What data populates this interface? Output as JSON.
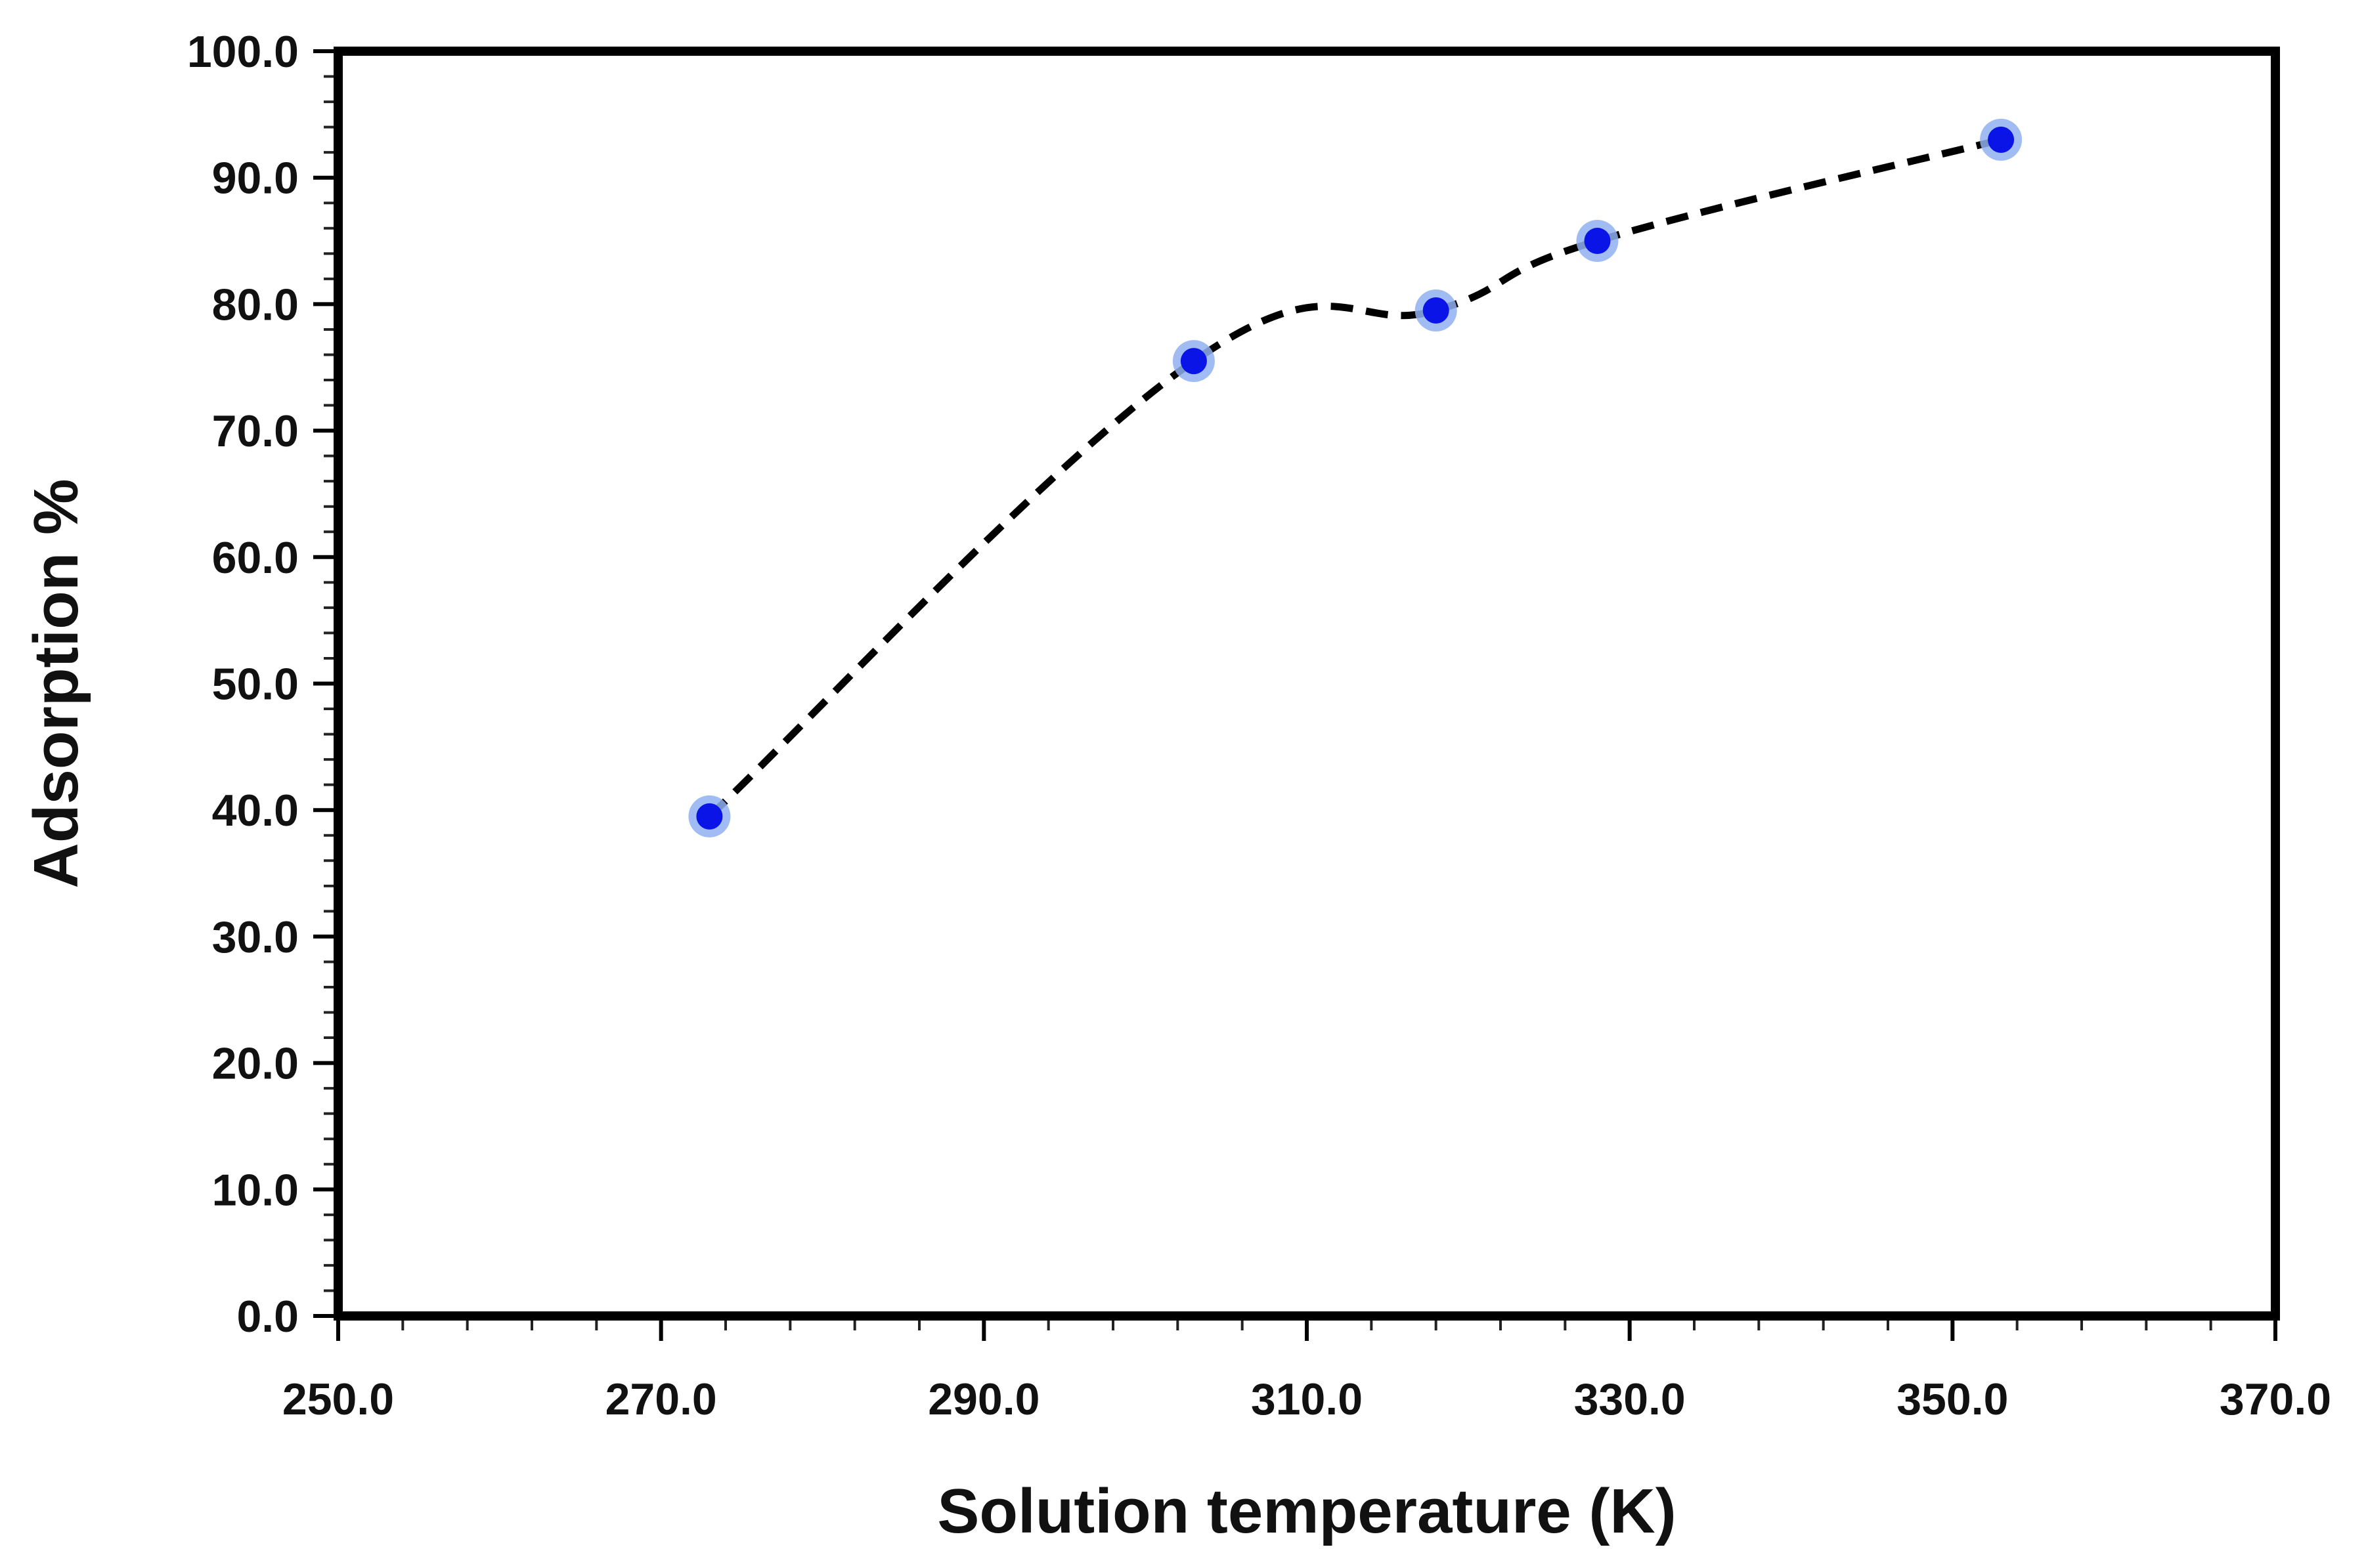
{
  "chart_data": {
    "type": "line",
    "title": "",
    "xlabel": "Solution temperature (K)",
    "ylabel": "Adsorption %",
    "xlim": [
      250,
      370
    ],
    "ylim": [
      0,
      100
    ],
    "x_ticks": [
      "250.0",
      "270.0",
      "290.0",
      "310.0",
      "330.0",
      "350.0",
      "370.0"
    ],
    "y_ticks": [
      "0.0",
      "10.0",
      "20.0",
      "30.0",
      "40.0",
      "50.0",
      "60.0",
      "70.0",
      "80.0",
      "90.0",
      "100.0"
    ],
    "grid": false,
    "series": [
      {
        "name": "Adsorption",
        "line_style": "dashed",
        "line_color": "#000000",
        "marker_color": "#0a14e6",
        "marker_halo_color": "#8fb0f0",
        "x": [
          273,
          303,
          318,
          328,
          353
        ],
        "y": [
          39.5,
          75.5,
          79.5,
          85.0,
          93.0
        ]
      }
    ]
  }
}
